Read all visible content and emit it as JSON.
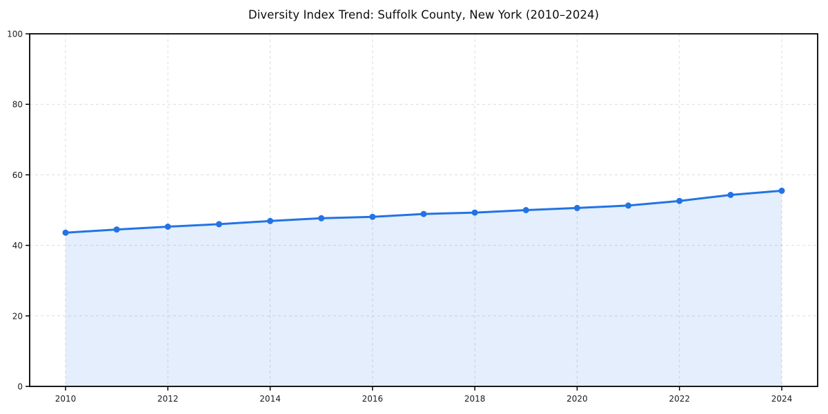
{
  "chart_data": {
    "type": "line",
    "title": "Diversity Index Trend: Suffolk County, New York (2010–2024)",
    "x": [
      2010,
      2011,
      2012,
      2013,
      2014,
      2015,
      2016,
      2017,
      2018,
      2019,
      2020,
      2021,
      2022,
      2023,
      2024
    ],
    "series": [
      {
        "name": "Diversity Index",
        "values": [
          43.6,
          44.5,
          45.3,
          46.0,
          46.9,
          47.7,
          48.1,
          48.9,
          49.3,
          50.0,
          50.6,
          51.3,
          52.6,
          54.3,
          55.5
        ]
      }
    ],
    "xlabel": "",
    "ylabel": "",
    "ylim": [
      0,
      100
    ],
    "xticks": [
      2010,
      2012,
      2014,
      2016,
      2018,
      2020,
      2022,
      2024
    ],
    "yticks": [
      0,
      20,
      40,
      60,
      80,
      100
    ],
    "grid": true,
    "grid_style": "dashed",
    "legend": "none",
    "marker": "circle",
    "area_fill": true,
    "line_color": "#2273e4",
    "marker_color": "#2273e4",
    "fill_color": "rgba(34,115,228,0.12)",
    "grid_color": "#dcdcdc",
    "axis_color": "#000000",
    "tick_label_color": "#1a1a1a",
    "title_color": "#0d0d0d",
    "background_color": "#ffffff"
  }
}
